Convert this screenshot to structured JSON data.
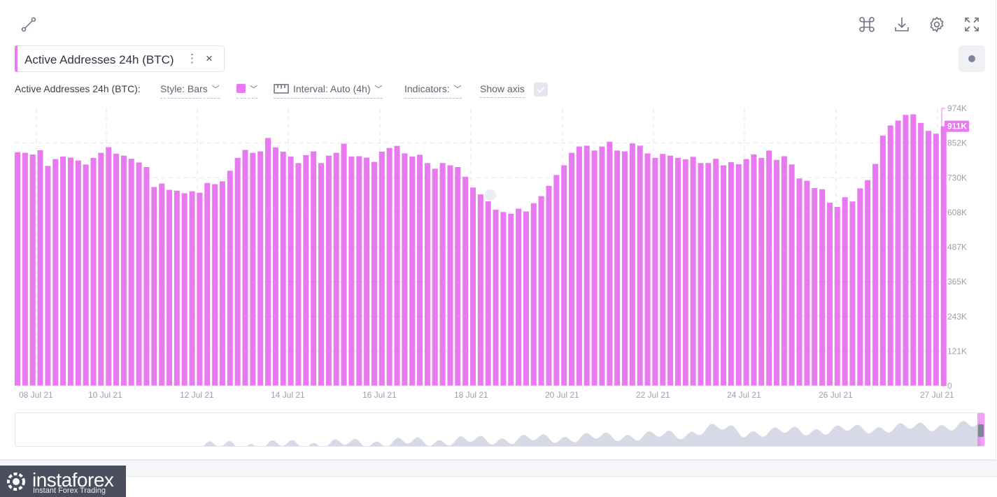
{
  "header": {
    "icons": [
      "line-tool-icon",
      "command-icon",
      "download-icon",
      "settings-icon",
      "fullscreen-icon"
    ]
  },
  "metric_tag": {
    "title": "Active Addresses 24h (BTC)",
    "menu_glyph": "⋮",
    "close_glyph": "×",
    "accent_color": "#e879f0"
  },
  "controls": {
    "metric_label": "Active Addresses 24h (BTC):",
    "style_label": "Style: Bars",
    "color": "#e879f0",
    "interval_label": "Interval: Auto (4h)",
    "indicators_label": "Indicators:",
    "show_axis_label": "Show axis",
    "show_axis_checked": true
  },
  "chart_data": {
    "type": "bar",
    "ylim": [
      0,
      974000
    ],
    "y_ticks": [
      "974K",
      "852K",
      "730K",
      "608K",
      "487K",
      "365K",
      "243K",
      "121K",
      "0"
    ],
    "x_ticks": [
      "08 Jul 21",
      "10 Jul 21",
      "12 Jul 21",
      "14 Jul 21",
      "16 Jul 21",
      "18 Jul 21",
      "20 Jul 21",
      "22 Jul 21",
      "24 Jul 21",
      "26 Jul 21",
      "27 Jul 21"
    ],
    "last_value_label": "911K",
    "last_value": 911000,
    "color": "#e879f0",
    "values": [
      820000,
      818000,
      812000,
      827000,
      772000,
      796000,
      805000,
      801000,
      791000,
      777000,
      800000,
      818000,
      838000,
      815000,
      808000,
      797000,
      784000,
      768000,
      698000,
      710000,
      688000,
      685000,
      676000,
      683000,
      678000,
      712000,
      708000,
      718000,
      755000,
      800000,
      828000,
      818000,
      823000,
      870000,
      837000,
      822000,
      805000,
      782000,
      810000,
      823000,
      782000,
      808000,
      818000,
      850000,
      805000,
      806000,
      801000,
      786000,
      822000,
      835000,
      842000,
      816000,
      805000,
      811000,
      782000,
      762000,
      782000,
      774000,
      768000,
      734000,
      696000,
      672000,
      648000,
      618000,
      610000,
      604000,
      622000,
      612000,
      641000,
      666000,
      702000,
      740000,
      774000,
      818000,
      840000,
      843000,
      826000,
      840000,
      857000,
      826000,
      823000,
      851000,
      843000,
      816000,
      800000,
      814000,
      808000,
      800000,
      795000,
      804000,
      782000,
      782000,
      797000,
      774000,
      785000,
      778000,
      796000,
      812000,
      800000,
      826000,
      793000,
      806000,
      777000,
      728000,
      720000,
      694000,
      690000,
      643000,
      628000,
      662000,
      647000,
      693000,
      722000,
      779000,
      878000,
      914000,
      931000,
      951000,
      953000,
      923000,
      895000,
      885000,
      911000
    ]
  },
  "navigator": {
    "handle_color": "#7e8597"
  },
  "watermark": {
    "name": "instaforex",
    "tagline": "Instant Forex Trading"
  }
}
